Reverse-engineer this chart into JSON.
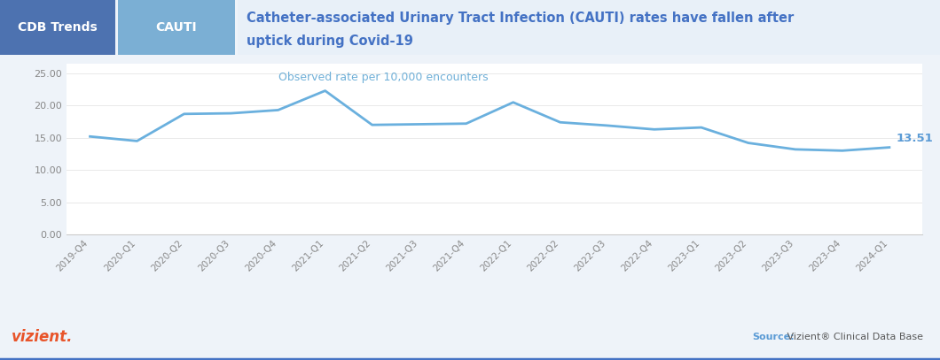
{
  "categories": [
    "2019-Q4",
    "2020-Q1",
    "2020-Q2",
    "2020-Q3",
    "2020-Q4",
    "2021-Q1",
    "2021-Q2",
    "2021-Q3",
    "2021-Q4",
    "2022-Q1",
    "2022-Q2",
    "2022-Q3",
    "2022-Q4",
    "2023-Q1",
    "2023-Q2",
    "2023-Q3",
    "2023-Q4",
    "2024-Q1"
  ],
  "values": [
    15.2,
    14.5,
    18.7,
    18.8,
    19.3,
    22.3,
    17.0,
    17.1,
    17.2,
    20.5,
    17.4,
    16.9,
    16.3,
    16.6,
    14.2,
    13.2,
    13.0,
    13.51
  ],
  "line_color": "#6ab0de",
  "last_value_label": "13.51",
  "last_value_color": "#5b9bd5",
  "title_line1": "Catheter-associated Urinary Tract Infection (CAUTI) rates have fallen after",
  "title_line2": "uptick during Covid-19",
  "title_color": "#4472c4",
  "subtitle": "Observed rate per 10,000 encounters",
  "subtitle_color": "#70b0d8",
  "yticks": [
    0.0,
    5.0,
    10.0,
    15.0,
    20.0,
    25.0
  ],
  "header_left_text": "CDB Trends",
  "header_left_bg": "#4d72b0",
  "header_mid_text": "CAUTI",
  "header_mid_bg": "#7bafd4",
  "header_text_color": "#ffffff",
  "header_bg": "#e8f0f8",
  "footer_vizient_color": "#e8542a",
  "footer_source_label": "Source:",
  "footer_source_label_color": "#5b9bd5",
  "footer_source_text": " Vizient® Clinical Data Base",
  "footer_source_text_color": "#595959",
  "bg_color": "#eef3f9",
  "plot_bg_color": "#ffffff",
  "tick_label_color": "#888888",
  "grid_color": "#e5e5e5",
  "bottom_border_color": "#4472c4"
}
